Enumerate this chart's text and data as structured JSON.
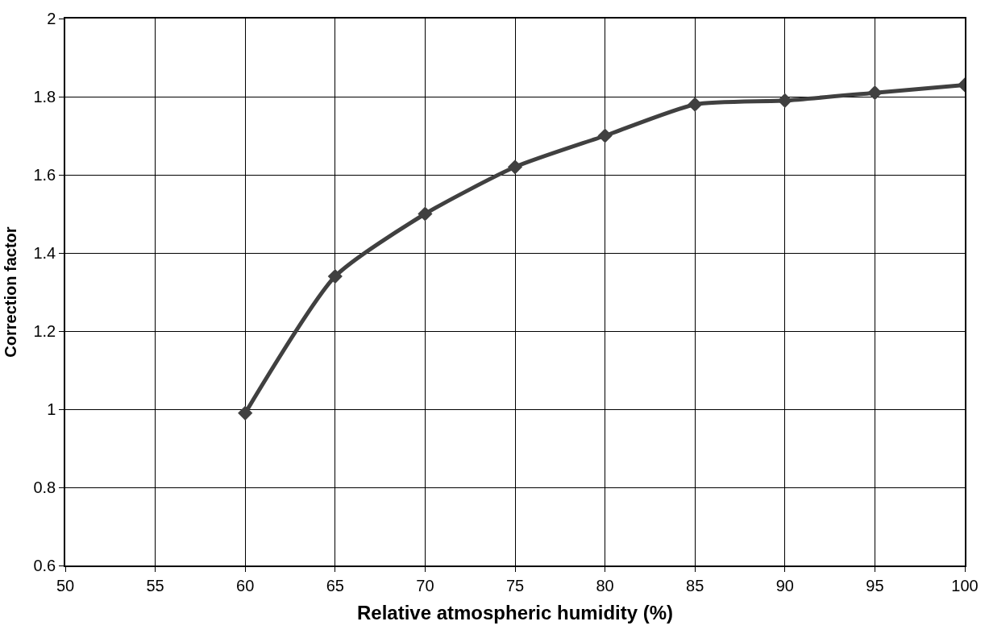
{
  "chart_data": {
    "type": "line",
    "xlabel": "Relative atmospheric humidity (%)",
    "ylabel": "Correction factor",
    "x": [
      60,
      65,
      70,
      75,
      80,
      85,
      90,
      95,
      100
    ],
    "series": [
      {
        "color": "#404040",
        "values": [
          0.99,
          1.34,
          1.5,
          1.62,
          1.7,
          1.78,
          1.79,
          1.81,
          1.83
        ]
      }
    ],
    "xlim": [
      50,
      100
    ],
    "xticks": [
      50,
      55,
      60,
      65,
      70,
      75,
      80,
      85,
      90,
      95,
      100
    ],
    "ylim": [
      0.6,
      2
    ],
    "yticks": [
      0.6,
      0.8,
      1,
      1.2,
      1.4,
      1.6,
      1.8,
      2
    ],
    "grid": true,
    "marker": "diamond",
    "line_style": "solid"
  }
}
